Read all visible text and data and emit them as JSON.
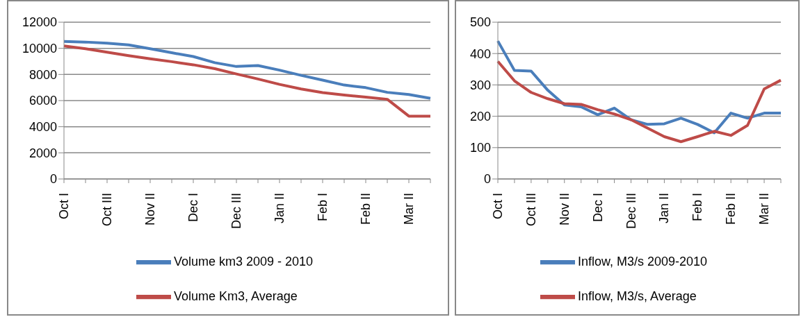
{
  "chart_data": [
    {
      "type": "line",
      "categories": [
        "Oct I",
        null,
        "Oct III",
        null,
        "Nov II",
        null,
        "Dec I",
        null,
        "Dec III",
        null,
        "Jan II",
        null,
        "Feb I",
        null,
        "Feb II",
        null,
        "Mar II",
        null
      ],
      "series": [
        {
          "name": "Volume km3 2009 - 2010",
          "color": "#4a7ebb",
          "values": [
            10520,
            10480,
            10400,
            10260,
            9970,
            9660,
            9370,
            8900,
            8610,
            8680,
            8330,
            7930,
            7570,
            7190,
            6990,
            6630,
            6460,
            6170
          ]
        },
        {
          "name": "Volume Km3, Average",
          "color": "#be4b48",
          "values": [
            10180,
            9970,
            9700,
            9440,
            9200,
            8980,
            8740,
            8440,
            8040,
            7650,
            7240,
            6890,
            6610,
            6430,
            6260,
            6100,
            4810,
            4810
          ]
        }
      ],
      "ylim": [
        0,
        12000
      ],
      "yticks": [
        0,
        2000,
        4000,
        6000,
        8000,
        10000,
        12000
      ],
      "grid": "y",
      "legend": "bottom"
    },
    {
      "type": "line",
      "categories": [
        "Oct I",
        null,
        "Oct III",
        null,
        "Nov II",
        null,
        "Dec I",
        null,
        "Dec III",
        null,
        "Jan II",
        null,
        "Feb I",
        null,
        "Feb II",
        null,
        "Mar II",
        null
      ],
      "series": [
        {
          "name": "Inflow, M3/s 2009-2010",
          "color": "#4a7ebb",
          "values": [
            440,
            346,
            344,
            283,
            236,
            230,
            205,
            226,
            189,
            174,
            176,
            194,
            174,
            147,
            210,
            194,
            210,
            210
          ]
        },
        {
          "name": "Inflow, M3/s, Average",
          "color": "#be4b48",
          "values": [
            375,
            313,
            276,
            256,
            240,
            238,
            221,
            207,
            189,
            162,
            135,
            119,
            135,
            152,
            139,
            171,
            287,
            315
          ]
        }
      ],
      "ylim": [
        0,
        500
      ],
      "yticks": [
        0,
        100,
        200,
        300,
        400,
        500
      ],
      "grid": "y",
      "legend": "bottom"
    }
  ]
}
